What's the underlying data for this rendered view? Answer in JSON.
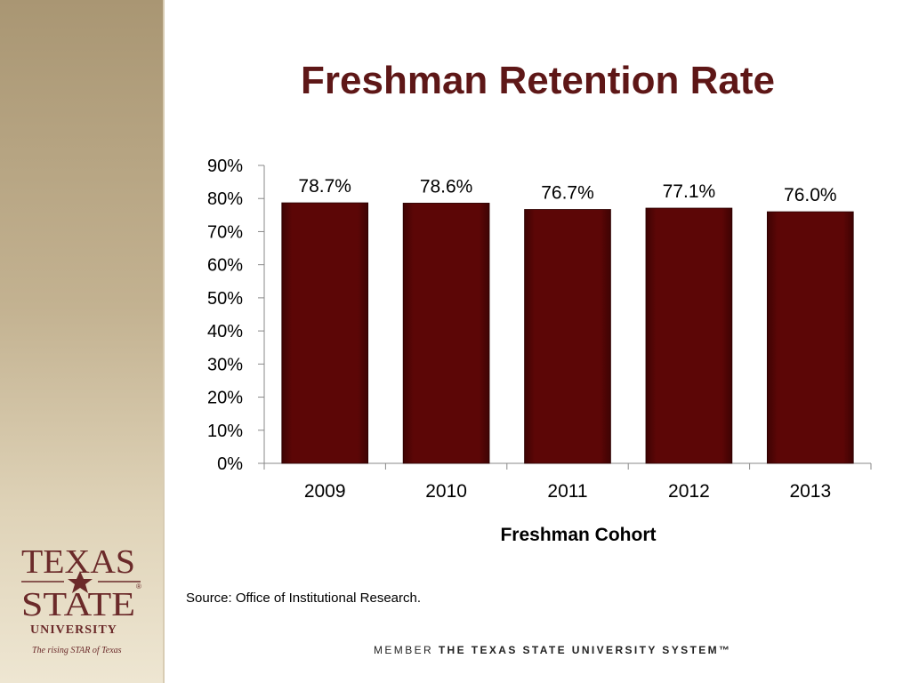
{
  "slide": {
    "title": "Freshman Retention Rate",
    "source": "Source:  Office of Institutional Research.",
    "member_prefix": "MEMBER",
    "member_system": "THE TEXAS STATE UNIVERSITY SYSTEM™"
  },
  "logo": {
    "line1": "TEXAS",
    "line2": "STATE",
    "line3": "UNIVERSITY",
    "tagline": "The rising STAR of Texas",
    "registered": "®"
  },
  "colors": {
    "bar": "#5c0606",
    "title": "#5e1717",
    "logo": "#6b2a2a"
  },
  "chart_data": {
    "type": "bar",
    "categories": [
      "2009",
      "2010",
      "2011",
      "2012",
      "2013"
    ],
    "values": [
      78.7,
      78.6,
      76.7,
      77.1,
      76.0
    ],
    "data_labels": [
      "78.7%",
      "78.6%",
      "76.7%",
      "77.1%",
      "76.0%"
    ],
    "xlabel": "Freshman Cohort",
    "ylabel": "",
    "ylim": [
      0,
      90
    ],
    "yticks": [
      "0%",
      "10%",
      "20%",
      "30%",
      "40%",
      "50%",
      "60%",
      "70%",
      "80%",
      "90%"
    ],
    "grid": false,
    "legend": "none"
  }
}
